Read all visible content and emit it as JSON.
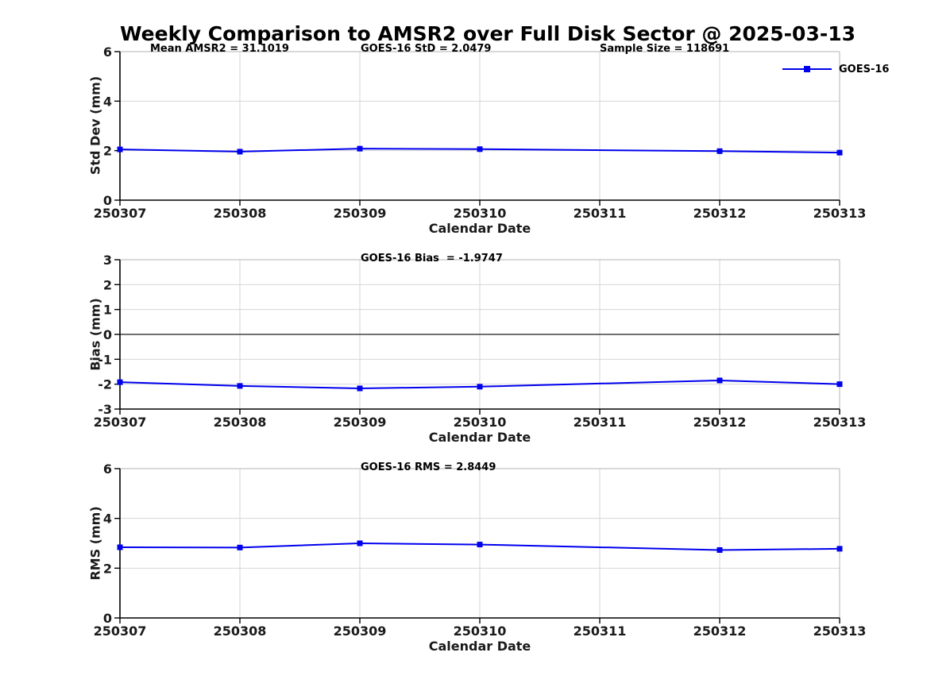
{
  "page": {
    "title": "Weekly Comparison to AMSR2 over Full Disk Sector @ 2025-03-13"
  },
  "colors": {
    "line": "#0000ee",
    "grid": "#d6d6d6",
    "frame": "#b3b3b3",
    "axis": "#000000",
    "zero_line": "#404040",
    "tick_text": "#1a1a1a"
  },
  "legend": {
    "label": "GOES-16"
  },
  "chart_data": [
    {
      "type": "line",
      "name": "std-dev",
      "ylabel": "Std Dev (mm)",
      "xlabel": "Calendar Date",
      "ylim": [
        0,
        6
      ],
      "yticks": [
        0,
        2,
        4,
        6
      ],
      "grid": true,
      "zero_line": false,
      "legend_position": "top-right-outside",
      "annotations": [
        "Mean AMSR2 = 31.1019",
        "GOES-16 StD = 2.0479",
        "Sample Size = 118691"
      ],
      "categories": [
        "250307",
        "250308",
        "250309",
        "250310",
        "250311",
        "250312",
        "250313"
      ],
      "series": [
        {
          "name": "GOES-16",
          "points": [
            [
              "250307",
              2.05
            ],
            [
              "250308",
              1.96
            ],
            [
              "250309",
              2.08
            ],
            [
              "250310",
              2.06
            ],
            [
              "250312",
              1.98
            ],
            [
              "250313",
              1.92
            ]
          ]
        }
      ]
    },
    {
      "type": "line",
      "name": "bias",
      "ylabel": "Bias (mm)",
      "xlabel": "Calendar Date",
      "ylim": [
        -3,
        3
      ],
      "yticks": [
        -3,
        -2,
        -1,
        0,
        1,
        2,
        3
      ],
      "grid": true,
      "zero_line": true,
      "annotations": [
        "GOES-16 Bias  = -1.9747"
      ],
      "categories": [
        "250307",
        "250308",
        "250309",
        "250310",
        "250311",
        "250312",
        "250313"
      ],
      "series": [
        {
          "name": "GOES-16",
          "points": [
            [
              "250307",
              -1.92
            ],
            [
              "250308",
              -2.07
            ],
            [
              "250309",
              -2.17
            ],
            [
              "250310",
              -2.1
            ],
            [
              "250312",
              -1.85
            ],
            [
              "250313",
              -2.0
            ]
          ]
        }
      ]
    },
    {
      "type": "line",
      "name": "rms",
      "ylabel": "RMS (mm)",
      "xlabel": "Calendar Date",
      "ylim": [
        0,
        6
      ],
      "yticks": [
        0,
        2,
        4,
        6
      ],
      "grid": true,
      "zero_line": false,
      "annotations": [
        "GOES-16 RMS = 2.8449"
      ],
      "categories": [
        "250307",
        "250308",
        "250309",
        "250310",
        "250311",
        "250312",
        "250313"
      ],
      "series": [
        {
          "name": "GOES-16",
          "points": [
            [
              "250307",
              2.84
            ],
            [
              "250308",
              2.83
            ],
            [
              "250309",
              3.0
            ],
            [
              "250310",
              2.95
            ],
            [
              "250312",
              2.73
            ],
            [
              "250313",
              2.78
            ]
          ]
        }
      ]
    }
  ]
}
